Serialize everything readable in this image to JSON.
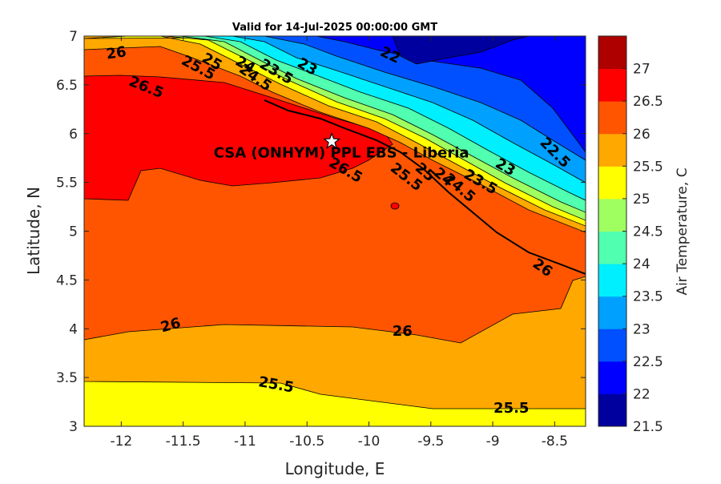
{
  "title": "Valid for 14-Jul-2025 00:00:00 GMT",
  "map": {
    "site_label": "CSA (ONHYM) PPL EBS  - Liberia",
    "x_label": "Longitude, E",
    "y_label": "Latitude, N",
    "x_range": [
      -12.3,
      -8.25
    ],
    "y_range": [
      3,
      7
    ],
    "x_ticks": [
      "-12",
      "-11.5",
      "-11",
      "-10.5",
      "-10",
      "-9.5",
      "-9",
      "-8.5"
    ],
    "y_ticks": [
      "3",
      "3.5",
      "4",
      "4.5",
      "5",
      "5.5",
      "6",
      "6.5",
      "7"
    ],
    "star": {
      "lon": -10.3,
      "lat": 5.92,
      "icon": "star-icon"
    },
    "contour_labels": [
      {
        "text": "26",
        "lon": -12.04,
        "lat": 6.82,
        "rot": -8
      },
      {
        "text": "26.5",
        "lon": -11.8,
        "lat": 6.47,
        "rot": 22
      },
      {
        "text": "25.5",
        "lon": -11.38,
        "lat": 6.67,
        "rot": 28
      },
      {
        "text": "25",
        "lon": -11.27,
        "lat": 6.73,
        "rot": 30
      },
      {
        "text": "24",
        "lon": -11.0,
        "lat": 6.7,
        "rot": 30
      },
      {
        "text": "24.5",
        "lon": -10.92,
        "lat": 6.57,
        "rot": 35
      },
      {
        "text": "23.5",
        "lon": -10.75,
        "lat": 6.63,
        "rot": 30
      },
      {
        "text": "23",
        "lon": -10.5,
        "lat": 6.68,
        "rot": 30
      },
      {
        "text": "22",
        "lon": -9.83,
        "lat": 6.8,
        "rot": 25
      },
      {
        "text": "26.5",
        "lon": -10.19,
        "lat": 5.62,
        "rot": 30
      },
      {
        "text": "25.5",
        "lon": -9.7,
        "lat": 5.55,
        "rot": 38
      },
      {
        "text": "25",
        "lon": -9.55,
        "lat": 5.6,
        "rot": 40
      },
      {
        "text": "24",
        "lon": -9.4,
        "lat": 5.55,
        "rot": 40
      },
      {
        "text": "24.5",
        "lon": -9.27,
        "lat": 5.44,
        "rot": 40
      },
      {
        "text": "23.5",
        "lon": -9.1,
        "lat": 5.5,
        "rot": 30
      },
      {
        "text": "23",
        "lon": -8.9,
        "lat": 5.65,
        "rot": 30
      },
      {
        "text": "22.5",
        "lon": -8.5,
        "lat": 5.8,
        "rot": 45
      },
      {
        "text": "26",
        "lon": -11.6,
        "lat": 4.03,
        "rot": -15
      },
      {
        "text": "26",
        "lon": -9.73,
        "lat": 3.97,
        "rot": 0
      },
      {
        "text": "26",
        "lon": -8.6,
        "lat": 4.62,
        "rot": 35
      },
      {
        "text": "25.5",
        "lon": -10.75,
        "lat": 3.42,
        "rot": 10
      },
      {
        "text": "25.5",
        "lon": -8.85,
        "lat": 3.18,
        "rot": 0
      }
    ]
  },
  "colorbar": {
    "label": "Air Temperature, C",
    "ticks": [
      "21.5",
      "22",
      "22.5",
      "23",
      "23.5",
      "24",
      "24.5",
      "25",
      "25.5",
      "26",
      "26.5",
      "27"
    ],
    "colors": [
      "#00009f",
      "#0000ff",
      "#0050ff",
      "#00a0ff",
      "#00efff",
      "#50ffaf",
      "#a0ff60",
      "#ffff00",
      "#ffa800",
      "#ff5500",
      "#ff0000",
      "#af0000"
    ]
  }
}
